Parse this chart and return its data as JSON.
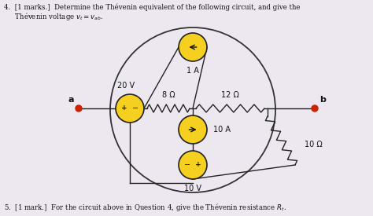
{
  "bg_color": "#ede8f0",
  "circle_bg": "#ede8f0",
  "circle_edge": "#333333",
  "source_color": "#f5d020",
  "source_edge": "#222222",
  "wire_color": "#222222",
  "node_color": "#cc2200",
  "text_color": "#111111",
  "label_1A": "1 A",
  "label_20V": "20 V",
  "label_10A": "10 A",
  "label_10V": "10 V",
  "label_8ohm": "8 Ω",
  "label_12ohm": "12 Ω",
  "label_10ohm": "10 Ω",
  "label_a": "a",
  "label_b": "b",
  "header1": "4.  [1 marks.]  Determine the Thévenin equivalent of the following circuit, and give the",
  "header2": "Thévenin voltage $v_t = v_{ab}$.",
  "footer": "5.  [1 mark.]  For the circuit above in Question 4, give the Thévenin resistance $R_t$."
}
